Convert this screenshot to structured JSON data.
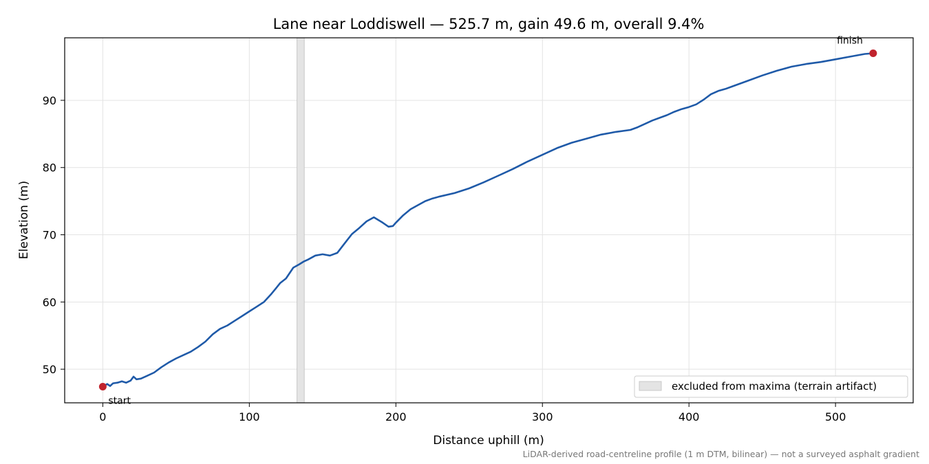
{
  "chart_data": {
    "type": "line",
    "title": "Lane near Loddiswell — 525.7 m, gain 49.6 m, overall 9.4%",
    "xlabel": "Distance uphill (m)",
    "ylabel": "Elevation (m)",
    "xlim": [
      -26,
      553
    ],
    "ylim": [
      45,
      99.3
    ],
    "xticks": [
      0,
      100,
      200,
      300,
      400,
      500
    ],
    "yticks": [
      50,
      60,
      70,
      80,
      90
    ],
    "grid": true,
    "series": [
      {
        "color": "#1f5aa8",
        "x": [
          0,
          3,
          5,
          7,
          10,
          13,
          16,
          19,
          21,
          23,
          26,
          30,
          35,
          40,
          45,
          50,
          55,
          60,
          65,
          70,
          75,
          80,
          85,
          90,
          95,
          100,
          105,
          110,
          115,
          118,
          121,
          125,
          130,
          134,
          137,
          140,
          145,
          150,
          155,
          160,
          165,
          170,
          175,
          180,
          185,
          188,
          191,
          195,
          198,
          200,
          205,
          210,
          215,
          220,
          225,
          230,
          240,
          250,
          260,
          270,
          280,
          290,
          300,
          310,
          320,
          330,
          340,
          350,
          360,
          365,
          370,
          375,
          380,
          385,
          390,
          395,
          400,
          405,
          410,
          415,
          420,
          425,
          430,
          440,
          450,
          460,
          470,
          480,
          490,
          500,
          510,
          520,
          525.7
        ],
        "y": [
          47.4,
          47.8,
          47.5,
          47.9,
          48.0,
          48.2,
          48.0,
          48.3,
          48.9,
          48.5,
          48.6,
          49.0,
          49.5,
          50.3,
          51.0,
          51.6,
          52.1,
          52.6,
          53.3,
          54.1,
          55.2,
          56.0,
          56.5,
          57.2,
          57.9,
          58.6,
          59.3,
          60.0,
          61.2,
          62.0,
          62.8,
          63.5,
          65.1,
          65.6,
          66.0,
          66.3,
          66.9,
          67.1,
          66.9,
          67.3,
          68.7,
          70.1,
          71.0,
          72.0,
          72.6,
          72.2,
          71.8,
          71.2,
          71.3,
          71.8,
          72.9,
          73.8,
          74.4,
          75.0,
          75.4,
          75.7,
          76.2,
          76.9,
          77.8,
          78.8,
          79.8,
          80.9,
          81.9,
          82.9,
          83.7,
          84.3,
          84.9,
          85.3,
          85.6,
          86.0,
          86.5,
          87.0,
          87.4,
          87.8,
          88.3,
          88.7,
          89.0,
          89.4,
          90.1,
          90.9,
          91.4,
          91.7,
          92.1,
          92.9,
          93.7,
          94.4,
          95.0,
          95.4,
          95.7,
          96.1,
          96.5,
          96.9,
          97.0
        ]
      }
    ],
    "markers": [
      {
        "x": 0,
        "y": 47.4,
        "label": "start",
        "color": "#c0232d"
      },
      {
        "x": 525.7,
        "y": 97.0,
        "label": "finish",
        "color": "#c0232d"
      }
    ],
    "excluded_band": {
      "x0": 132.5,
      "x1": 137.5,
      "color": "#e4e4e4"
    },
    "legend": {
      "entries": [
        "excluded from maxima (terrain artifact)"
      ],
      "placement": "bottom-right"
    },
    "footnote": "LiDAR-derived road-centreline profile (1 m DTM, bilinear) — not a surveyed asphalt gradient"
  }
}
